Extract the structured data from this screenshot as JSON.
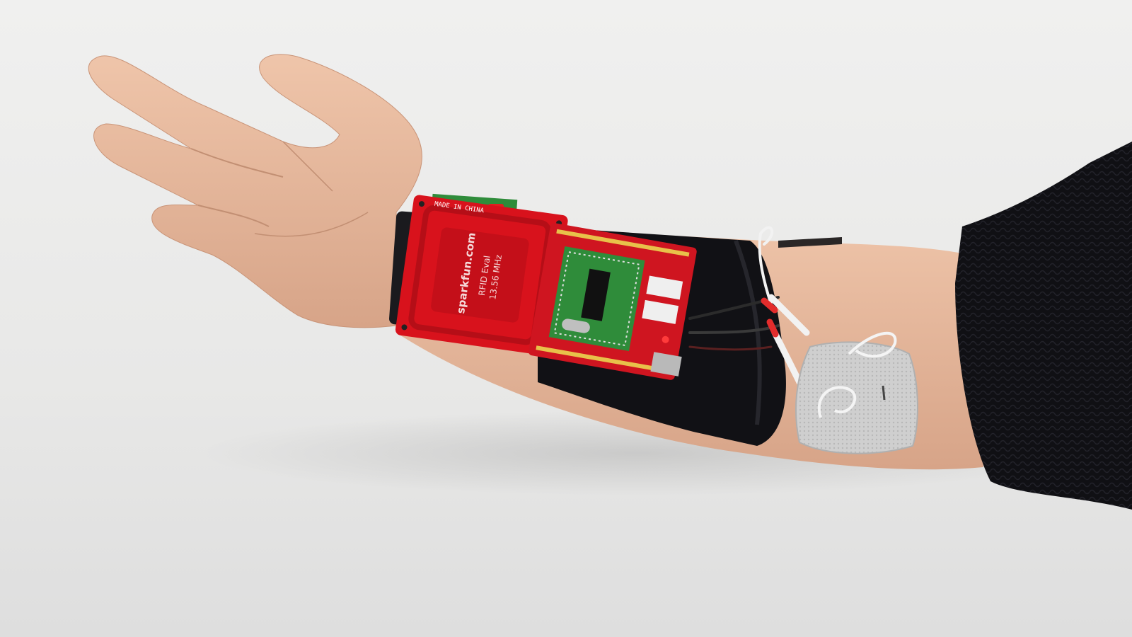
{
  "photo": {
    "subject": "forearm wearable",
    "colors": {
      "background": "#e9e9e8",
      "skin": "#e6b79b",
      "sleeve": "#0f0f12",
      "pcb_red": "#d8121c",
      "pcb_green": "#2f8c3a",
      "electrode": "#c9c9c9",
      "wire_white": "#f2f2f2",
      "wire_red": "#e32c2c"
    }
  },
  "rfid_board": {
    "brand": "sparkfun.com",
    "model": "RFID Eval",
    "frequency": "13.56 MHz",
    "stamp": "MADE IN CHINA"
  }
}
